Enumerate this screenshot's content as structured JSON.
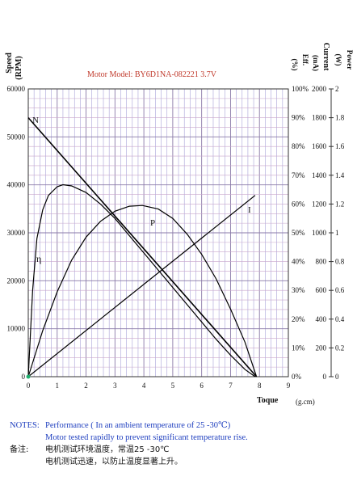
{
  "chart_data": {
    "type": "line",
    "title": "Motor Model: BY6D1NA-082221  3.7V",
    "xlabel": "Toque",
    "xunit": "(g.cm)",
    "xlim": [
      0,
      9
    ],
    "x_ticks": [
      "0",
      "1",
      "2",
      "3",
      "4",
      "5",
      "6",
      "7",
      "8",
      "9"
    ],
    "left_axis": {
      "label_line1": "Speed",
      "label_line2": "(RPM)",
      "lim": [
        0,
        60000
      ],
      "ticks": [
        "0",
        "10000",
        "20000",
        "30000",
        "40000",
        "50000",
        "60000"
      ]
    },
    "eff_axis": {
      "unit": "(%)",
      "label": "Eff.",
      "lim": [
        0,
        100
      ],
      "ticks": [
        "0%",
        "10%",
        "20%",
        "30%",
        "40%",
        "50%",
        "60%",
        "70%",
        "80%",
        "90%",
        "100%"
      ]
    },
    "current_axis": {
      "label": "Current",
      "unit": "(mA)",
      "lim": [
        0,
        2000
      ],
      "ticks": [
        "0",
        "200",
        "400",
        "600",
        "800",
        "1000",
        "1200",
        "1400",
        "1600",
        "1800",
        "2000"
      ]
    },
    "power_axis": {
      "label": "Power",
      "unit": "(W)",
      "lim": [
        0,
        2
      ],
      "ticks": [
        "0",
        "0.2",
        "0.4",
        "0.6",
        "0.8",
        "1",
        "1.2",
        "1.4",
        "1.6",
        "1.8",
        "2"
      ]
    },
    "grid": true,
    "series": [
      {
        "name": "N",
        "axis": "speed",
        "color": "#000000",
        "x": [
          0,
          7.9
        ],
        "y": [
          54000,
          0
        ]
      },
      {
        "name": "I",
        "axis": "current",
        "color": "#000000",
        "x": [
          0,
          7.85
        ],
        "y": [
          0,
          1260
        ]
      },
      {
        "name": "η",
        "axis": "eff",
        "color": "#000000",
        "x": [
          0,
          0.15,
          0.3,
          0.5,
          0.7,
          1.0,
          1.2,
          1.5,
          2.0,
          2.5,
          3.0,
          3.5,
          4.0,
          4.5,
          5.0,
          5.5,
          6.0,
          6.5,
          7.0,
          7.5,
          7.85
        ],
        "y": [
          0,
          30,
          48,
          58,
          63,
          66,
          66.7,
          66.3,
          64,
          60,
          55,
          49,
          43,
          37,
          31,
          25,
          19,
          13,
          7.5,
          2.5,
          0
        ]
      },
      {
        "name": "P",
        "axis": "power",
        "color": "#000000",
        "x": [
          0,
          0.5,
          1.0,
          1.5,
          2.0,
          2.5,
          3.0,
          3.5,
          3.95,
          4.5,
          5.0,
          5.5,
          6.0,
          6.5,
          7.0,
          7.5,
          7.9
        ],
        "y": [
          0,
          0.32,
          0.59,
          0.81,
          0.97,
          1.08,
          1.15,
          1.185,
          1.19,
          1.165,
          1.1,
          0.99,
          0.85,
          0.68,
          0.47,
          0.24,
          0
        ]
      }
    ],
    "series_labels": [
      "N",
      "η",
      "P",
      "I"
    ]
  },
  "notes": {
    "label_en": "NOTES:",
    "line1": "Performance ( In an ambient temperature of 25 -30℃)",
    "line2": "Motor tested rapidly to prevent significant temperature rise.",
    "label_cn": "备注:",
    "line3": "电机测试环境温度，常温25 -30℃",
    "line4": "电机测试迅速，以防止温度显著上升。"
  }
}
